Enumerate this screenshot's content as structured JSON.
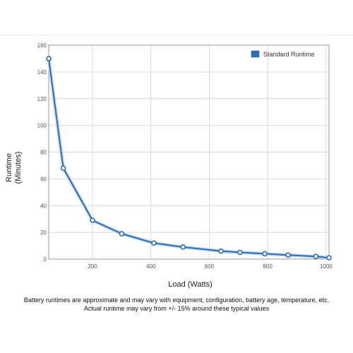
{
  "chart_data": {
    "type": "line",
    "xlabel": "Load (Watts)",
    "ylabel": [
      "Runtime",
      "(Minutes)"
    ],
    "xlim": [
      50,
      1010
    ],
    "ylim": [
      0,
      160
    ],
    "x_ticks": [
      200,
      400,
      600,
      800,
      1000
    ],
    "y_ticks": [
      0,
      20,
      40,
      60,
      80,
      100,
      120,
      140,
      160
    ],
    "grid": true,
    "legend": "top-right",
    "series": [
      {
        "name": "Standard Runtime",
        "color": "#2a6ebb",
        "x": [
          50,
          100,
          200,
          300,
          410,
          510,
          640,
          705,
          790,
          870,
          965,
          1010
        ],
        "y": [
          150,
          68,
          29,
          19,
          12,
          9,
          6,
          5,
          4,
          3,
          2,
          1
        ]
      }
    ]
  },
  "notes": {
    "line1": "Battery runtimes are approximate and may vary with equipment, configuration, battery age, temperature, etc.",
    "line2": "Actual runtime may vary from +/- 15% around these typical values"
  }
}
